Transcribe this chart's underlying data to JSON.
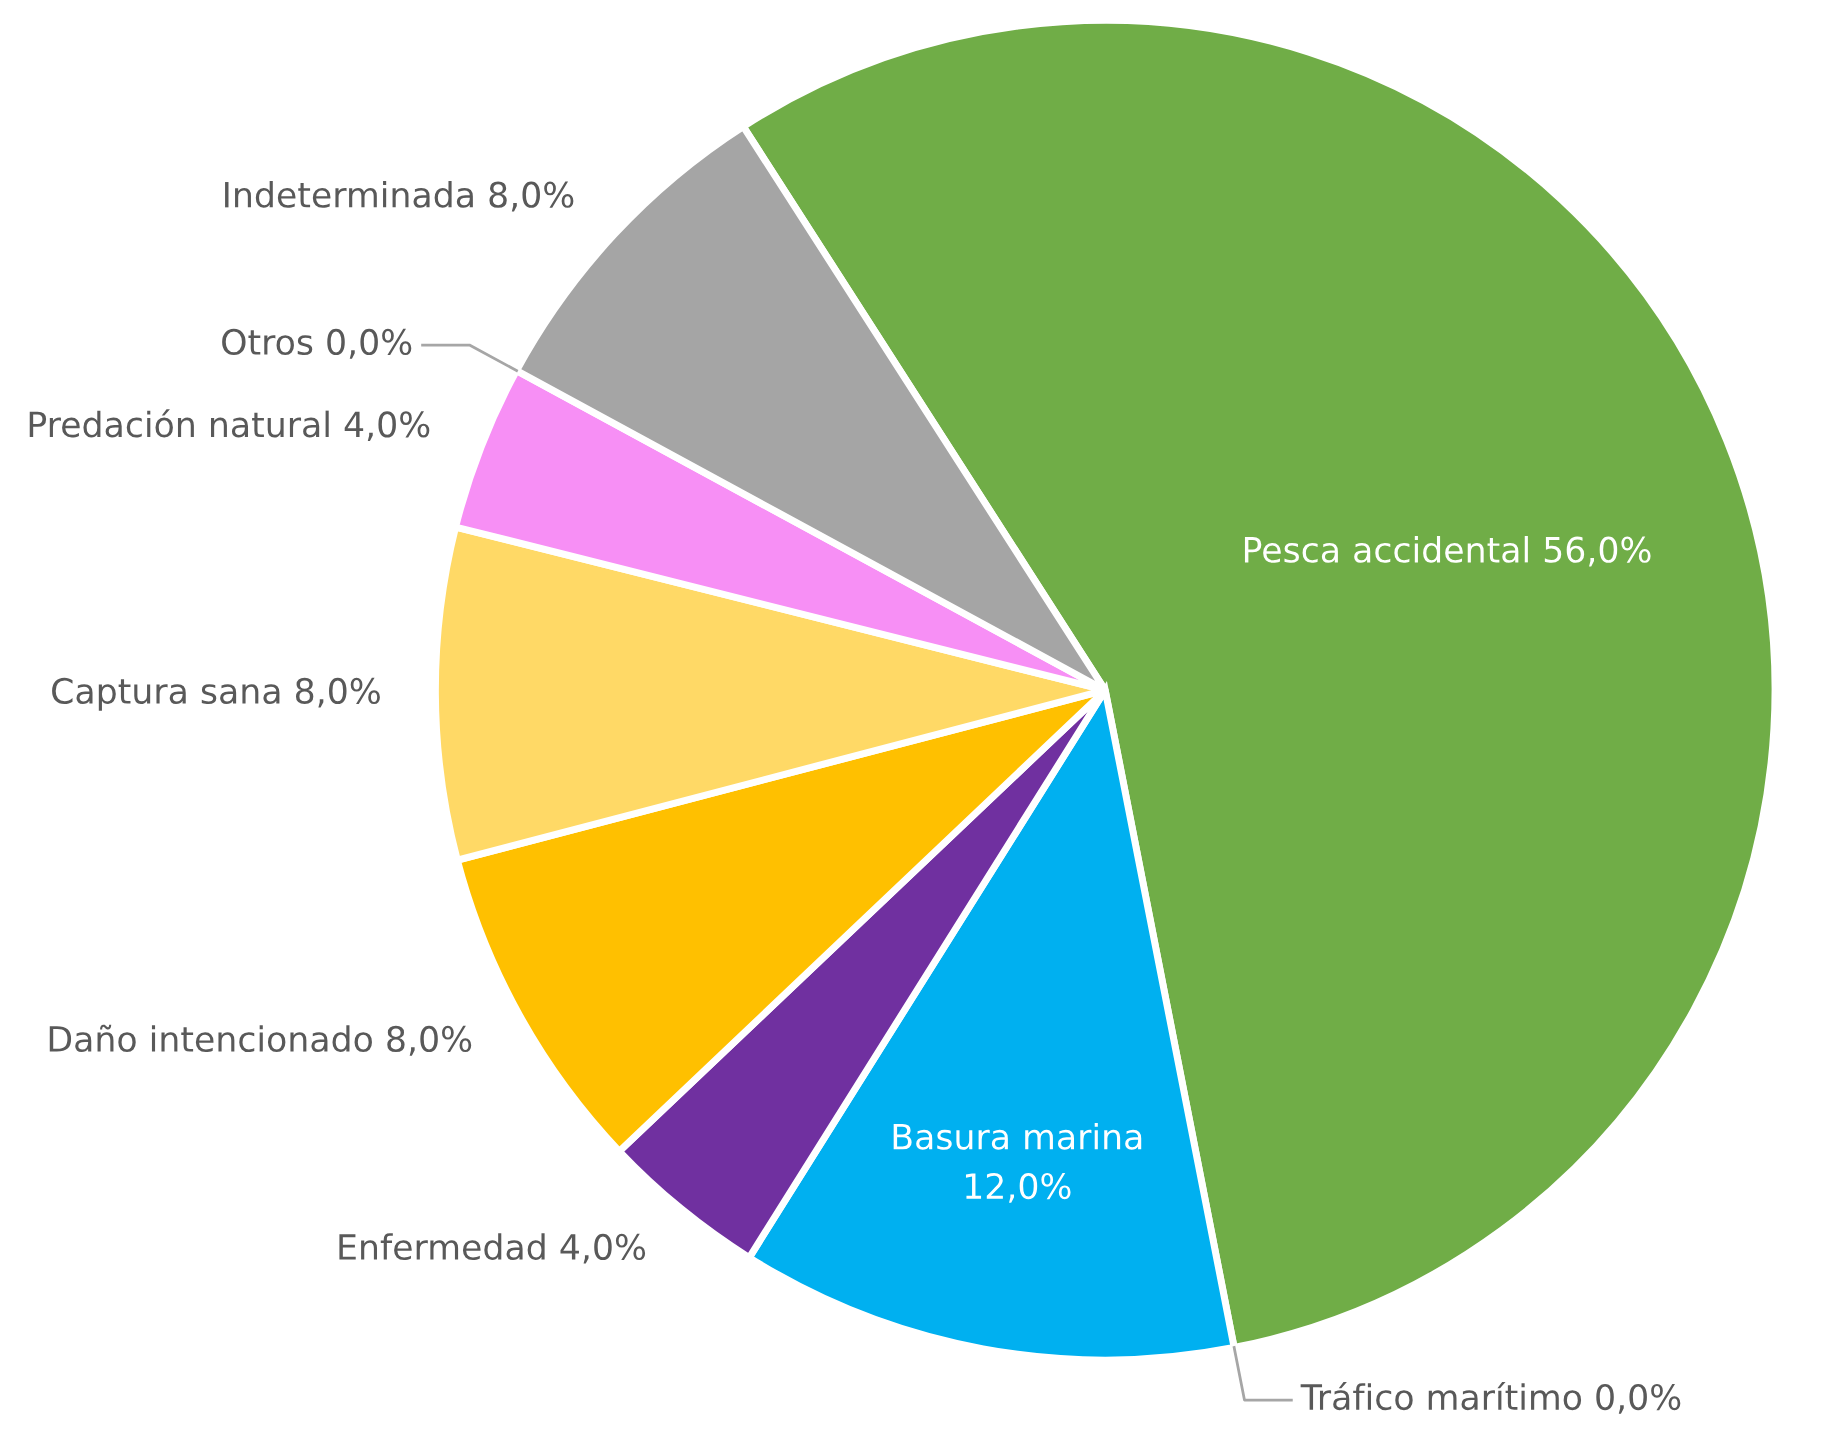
{
  "chart_data": {
    "type": "pie",
    "categories": [
      "Pesca accidental",
      "Tráfico marítimo",
      "Basura marina",
      "Enfermedad",
      "Daño intencionado",
      "Captura sana",
      "Predación natural",
      "Otros",
      "Indeterminada"
    ],
    "values": [
      56,
      0,
      12,
      4,
      8,
      8,
      4,
      0,
      8
    ],
    "value_labels": [
      "56,0%",
      "0,0%",
      "12,0%",
      "4,0%",
      "8,0%",
      "8,0%",
      "4,0%",
      "0,0%",
      "8,0%"
    ],
    "colors": [
      "#70ad47",
      "#4472c4",
      "#00b0f0",
      "#7030a0",
      "#ffc000",
      "#ffd966",
      "#f78ff5",
      "#bfbfbf",
      "#a5a5a5"
    ]
  }
}
